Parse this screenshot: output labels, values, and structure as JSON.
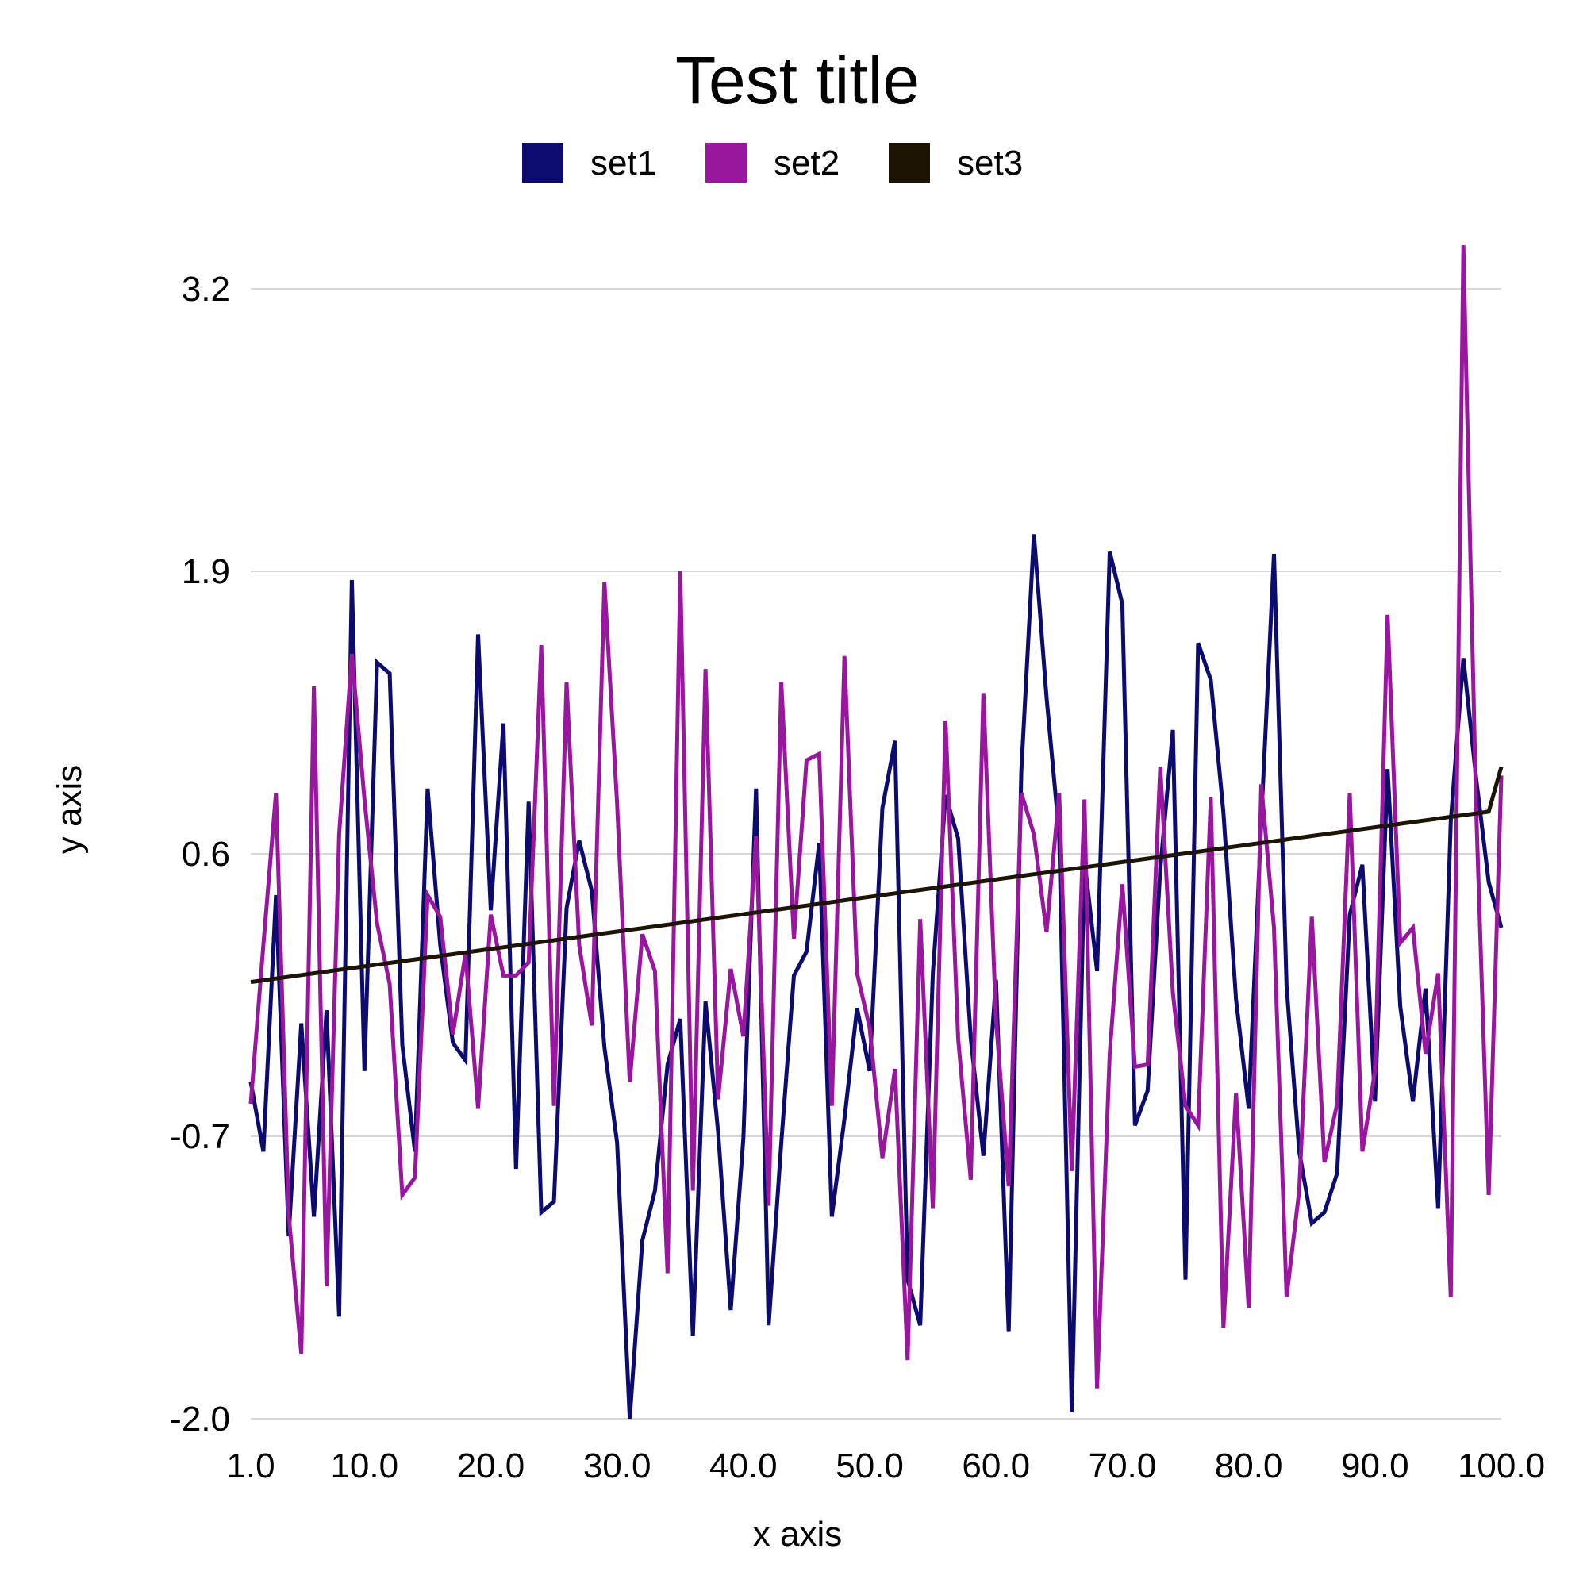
{
  "chart_data": {
    "type": "line",
    "title": "Test title",
    "xlabel": "x axis",
    "ylabel": "y axis",
    "xlim": [
      1,
      100
    ],
    "ylim": [
      -2.0,
      3.2
    ],
    "x_ticks": [
      "1.0",
      "10.0",
      "20.0",
      "30.0",
      "40.0",
      "50.0",
      "60.0",
      "70.0",
      "80.0",
      "90.0",
      "100.0"
    ],
    "x_tick_values": [
      1,
      10,
      20,
      30,
      40,
      50,
      60,
      70,
      80,
      90,
      100
    ],
    "y_ticks": [
      "-2.0",
      "-0.7",
      "0.6",
      "1.9",
      "3.2"
    ],
    "y_tick_values": [
      -2.0,
      -0.7,
      0.6,
      1.9,
      3.2
    ],
    "grid": "horizontal",
    "legend_position": "top-center",
    "x": [
      1,
      2,
      3,
      4,
      5,
      6,
      7,
      8,
      9,
      10,
      11,
      12,
      13,
      14,
      15,
      16,
      17,
      18,
      19,
      20,
      21,
      22,
      23,
      24,
      25,
      26,
      27,
      28,
      29,
      30,
      31,
      32,
      33,
      34,
      35,
      36,
      37,
      38,
      39,
      40,
      41,
      42,
      43,
      44,
      45,
      46,
      47,
      48,
      49,
      50,
      51,
      52,
      53,
      54,
      55,
      56,
      57,
      58,
      59,
      60,
      61,
      62,
      63,
      64,
      65,
      66,
      67,
      68,
      69,
      70,
      71,
      72,
      73,
      74,
      75,
      76,
      77,
      78,
      79,
      80,
      81,
      82,
      83,
      84,
      85,
      86,
      87,
      88,
      89,
      90,
      91,
      92,
      93,
      94,
      95,
      96,
      97,
      98,
      99,
      100
    ],
    "series": [
      {
        "name": "set1",
        "color": "#0c0c6e",
        "values": [
          -0.45,
          -0.77,
          0.41,
          -1.16,
          -0.18,
          -1.07,
          -0.12,
          -1.53,
          1.86,
          -0.4,
          1.48,
          1.43,
          -0.28,
          -0.77,
          0.9,
          0.18,
          -0.27,
          -0.35,
          1.61,
          0.34,
          1.2,
          -0.85,
          0.84,
          -1.05,
          -1.0,
          0.35,
          0.66,
          0.43,
          -0.29,
          -0.73,
          -2.0,
          -1.18,
          -0.95,
          -0.37,
          -0.16,
          -1.62,
          -0.08,
          -0.68,
          -1.5,
          -0.71,
          0.9,
          -1.57,
          -0.73,
          0.04,
          0.15,
          0.65,
          -1.07,
          -0.62,
          -0.11,
          -0.4,
          0.81,
          1.12,
          -1.36,
          -1.57,
          0.05,
          0.87,
          0.67,
          -0.25,
          -0.79,
          0.02,
          -1.6,
          0.98,
          2.07,
          1.32,
          0.69,
          -1.97,
          0.57,
          0.06,
          1.99,
          1.75,
          -0.65,
          -0.49,
          0.53,
          1.17,
          -1.36,
          1.57,
          1.4,
          0.79,
          -0.07,
          -0.57,
          0.75,
          1.98,
          -0.01,
          -0.77,
          -1.1,
          -1.05,
          -0.87,
          0.32,
          0.55,
          -0.54,
          0.99,
          -0.1,
          -0.54,
          -0.02,
          -1.03,
          0.75,
          1.5,
          0.95,
          0.47,
          0.26
        ]
      },
      {
        "name": "set2",
        "color": "#99169e",
        "values": [
          -0.55,
          0.18,
          0.88,
          -1.06,
          -1.7,
          1.37,
          -1.39,
          0.69,
          1.52,
          0.85,
          0.28,
          0.0,
          -0.97,
          -0.89,
          0.41,
          0.31,
          -0.23,
          0.14,
          -0.57,
          0.32,
          0.04,
          0.04,
          0.1,
          1.56,
          -0.56,
          1.39,
          0.18,
          -0.19,
          1.85,
          0.83,
          -0.45,
          0.23,
          0.06,
          -1.33,
          1.9,
          -0.95,
          1.45,
          -0.53,
          0.07,
          -0.24,
          0.68,
          -1.02,
          1.39,
          0.21,
          1.03,
          1.06,
          -0.56,
          1.51,
          0.05,
          -0.2,
          -0.8,
          -0.39,
          -1.73,
          0.3,
          -1.03,
          1.21,
          -0.25,
          -0.9,
          1.34,
          -0.16,
          -0.93,
          0.88,
          0.69,
          0.24,
          0.88,
          -0.86,
          0.85,
          -1.86,
          -0.32,
          0.46,
          -0.38,
          -0.37,
          1.0,
          -0.04,
          -0.56,
          -0.65,
          0.86,
          -1.58,
          -0.5,
          -1.49,
          0.92,
          0.26,
          -1.44,
          -0.95,
          0.31,
          -0.82,
          -0.55,
          0.88,
          -0.77,
          -0.4,
          1.7,
          0.19,
          0.26,
          -0.32,
          0.05,
          -1.44,
          3.4,
          0.82,
          -0.97,
          0.96
        ]
      },
      {
        "name": "set3",
        "color": "#1c1405",
        "values": [
          0.01,
          0.018,
          0.026,
          0.034,
          0.042,
          0.05,
          0.058,
          0.066,
          0.074,
          0.082,
          0.09,
          0.098,
          0.106,
          0.114,
          0.122,
          0.13,
          0.138,
          0.146,
          0.154,
          0.162,
          0.17,
          0.178,
          0.186,
          0.194,
          0.202,
          0.21,
          0.218,
          0.226,
          0.234,
          0.242,
          0.25,
          0.258,
          0.266,
          0.274,
          0.282,
          0.29,
          0.298,
          0.306,
          0.314,
          0.322,
          0.33,
          0.338,
          0.346,
          0.354,
          0.362,
          0.37,
          0.378,
          0.386,
          0.394,
          0.402,
          0.41,
          0.418,
          0.426,
          0.434,
          0.442,
          0.45,
          0.458,
          0.466,
          0.474,
          0.482,
          0.49,
          0.498,
          0.506,
          0.514,
          0.522,
          0.53,
          0.538,
          0.546,
          0.554,
          0.562,
          0.57,
          0.578,
          0.586,
          0.594,
          0.602,
          0.61,
          0.618,
          0.626,
          0.634,
          0.642,
          0.65,
          0.658,
          0.666,
          0.674,
          0.682,
          0.69,
          0.698,
          0.706,
          0.714,
          0.722,
          0.73,
          0.738,
          0.746,
          0.754,
          0.762,
          0.77,
          0.778,
          0.786,
          0.794,
          1.0
        ]
      }
    ]
  }
}
